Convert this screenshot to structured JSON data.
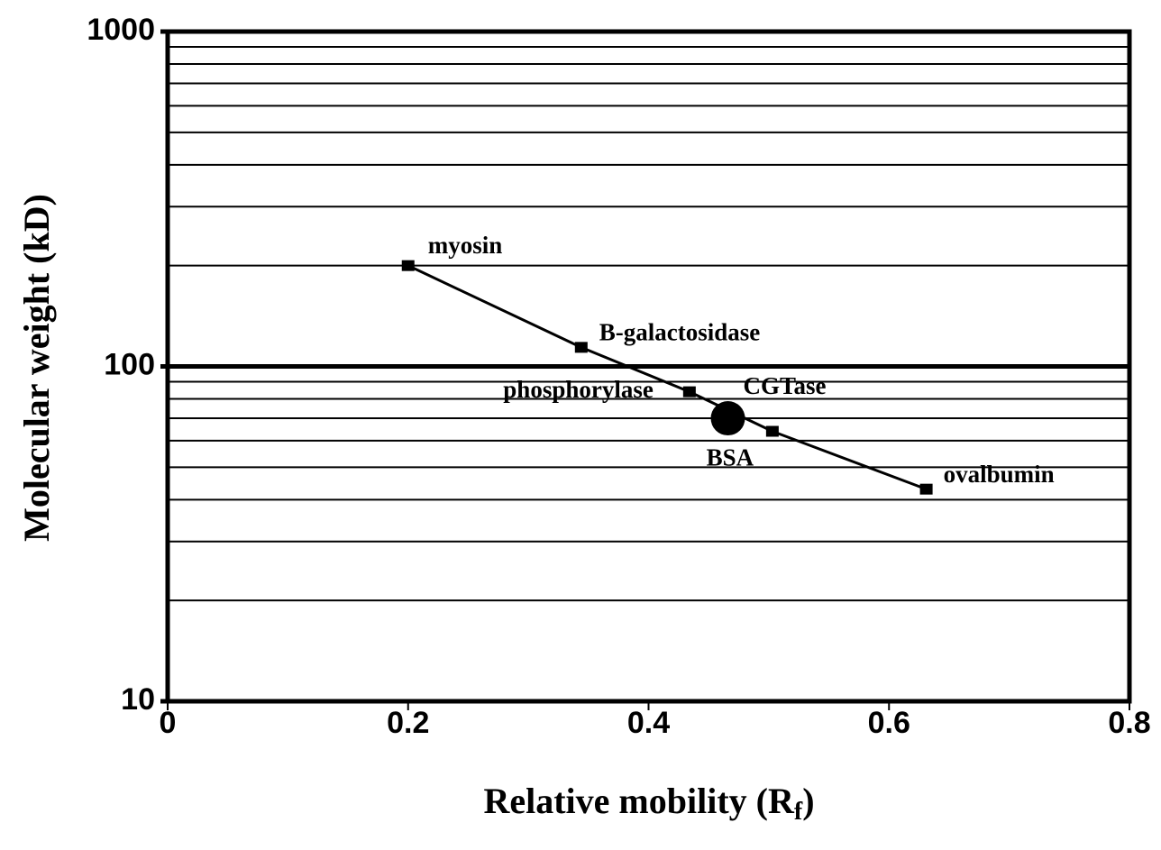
{
  "chart_data": {
    "type": "line",
    "x_label": [
      "Relative mobility (R",
      "f",
      ")"
    ],
    "y_label": "Molecular weight (kD)",
    "xlim": [
      0,
      0.8
    ],
    "xticks": [
      0,
      0.2,
      0.4,
      0.6,
      0.8
    ],
    "ylim": [
      10,
      1000
    ],
    "yticks": [
      10,
      100,
      1000
    ],
    "log_y": true,
    "minor_grid": [
      20,
      30,
      40,
      50,
      60,
      70,
      80,
      90,
      200,
      300,
      400,
      500,
      600,
      700,
      800,
      900
    ],
    "series": [
      {
        "color": "#000000",
        "marker": "square",
        "x": [
          0.2,
          0.344,
          0.434,
          0.503,
          0.631
        ],
        "values": [
          200,
          114,
          84,
          64,
          43
        ],
        "point_labels": [
          "myosin",
          "B-galactosidase",
          "phosphorylase",
          "BSA",
          "ovalbumin"
        ]
      },
      {
        "color": "#000000",
        "marker": "circle",
        "x": [
          0.466
        ],
        "values": [
          70
        ],
        "point_labels": [
          "CGTase"
        ]
      }
    ]
  }
}
